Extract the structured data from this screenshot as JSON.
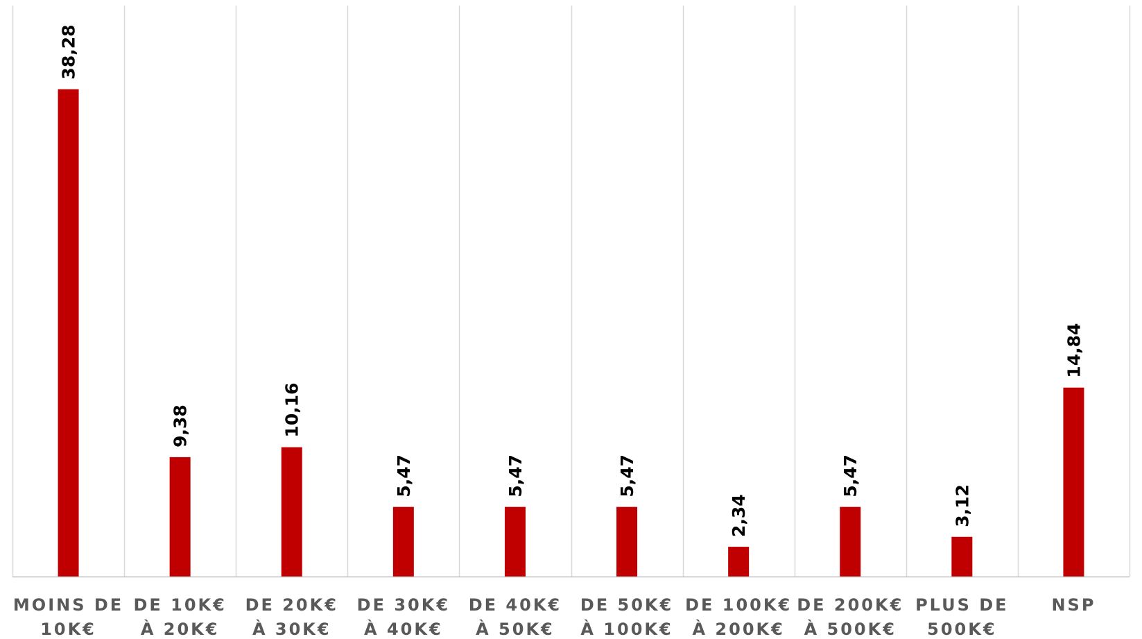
{
  "chart_data": {
    "type": "bar",
    "categories": [
      [
        "MOINS DE",
        "10K€"
      ],
      [
        "DE 10K€",
        "À 20K€"
      ],
      [
        "DE 20K€",
        "À 30K€"
      ],
      [
        "DE 30K€",
        "À 40K€"
      ],
      [
        "DE 40K€",
        "À 50K€"
      ],
      [
        "DE 50K€",
        "À 100K€"
      ],
      [
        "DE 100K€",
        "À 200K€"
      ],
      [
        "DE 200K€",
        "À 500K€"
      ],
      [
        "PLUS DE",
        "500K€"
      ],
      [
        "NSP"
      ]
    ],
    "values": [
      38.28,
      9.38,
      10.16,
      5.47,
      5.47,
      5.47,
      2.34,
      5.47,
      3.12,
      14.84
    ],
    "value_labels": [
      "38,28",
      "9,38",
      "10,16",
      "5,47",
      "5,47",
      "5,47",
      "2,34",
      "5,47",
      "3,12",
      "14,84"
    ],
    "title": "",
    "xlabel": "",
    "ylabel": "",
    "ylim": [
      0,
      45
    ],
    "grid": "vertical",
    "legend": "none",
    "colors": {
      "bar": "#c00000",
      "grid": "#d9d9d9",
      "axis": "#bfbfbf",
      "value_text": "#000000",
      "category_text": "#595959"
    }
  }
}
